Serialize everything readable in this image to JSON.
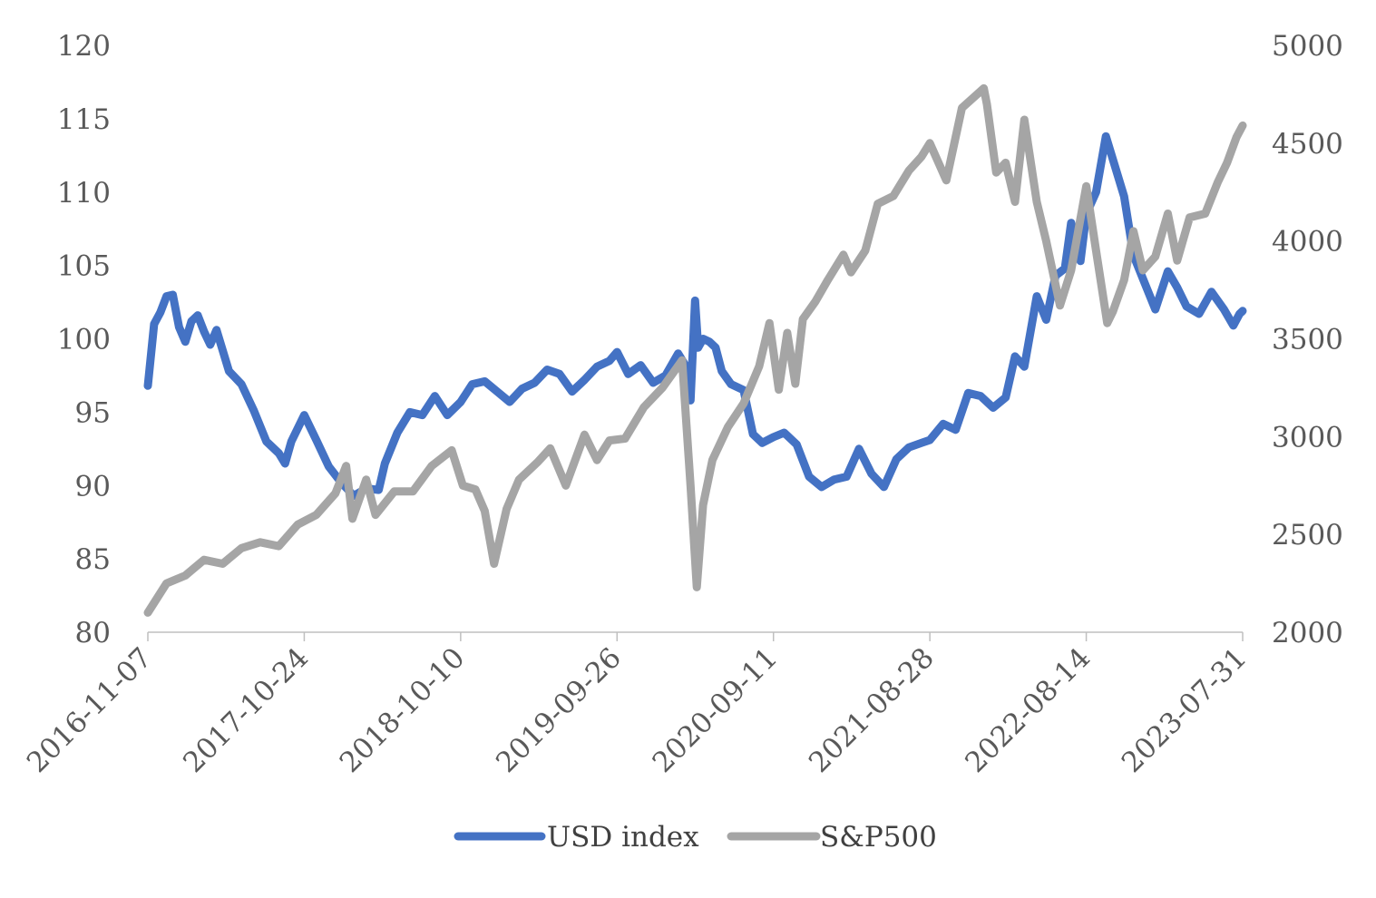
{
  "chart_data": {
    "type": "line",
    "title": "",
    "x_tick_labels": [
      "2016-11-07",
      "2017-10-24",
      "2018-10-10",
      "2019-09-26",
      "2020-09-11",
      "2021-08-28",
      "2022-08-14",
      "2023-07-31"
    ],
    "x_range": [
      "2016-11-07",
      "2023-07-31"
    ],
    "left_axis": {
      "ylim": [
        80,
        120
      ],
      "ticks": [
        "80",
        "85",
        "90",
        "95",
        "100",
        "105",
        "110",
        "115",
        "120"
      ]
    },
    "right_axis": {
      "ylim": [
        2000,
        5000
      ],
      "ticks": [
        "2000",
        "2500",
        "3000",
        "3500",
        "4000",
        "4500",
        "5000"
      ]
    },
    "grid": false,
    "legend_position": "bottom",
    "series": [
      {
        "name": "USD index",
        "axis": "left",
        "color": "#4472C4",
        "x": [
          "2016-11-07",
          "2016-11-21",
          "2016-12-05",
          "2016-12-19",
          "2017-01-02",
          "2017-01-16",
          "2017-01-30",
          "2017-02-13",
          "2017-02-27",
          "2017-03-13",
          "2017-03-27",
          "2017-04-10",
          "2017-05-08",
          "2017-06-05",
          "2017-07-03",
          "2017-07-31",
          "2017-08-28",
          "2017-09-11",
          "2017-09-25",
          "2017-10-24",
          "2017-11-20",
          "2017-12-18",
          "2018-01-15",
          "2018-02-12",
          "2018-03-12",
          "2018-04-09",
          "2018-04-23",
          "2018-05-21",
          "2018-06-18",
          "2018-07-16",
          "2018-08-13",
          "2018-09-10",
          "2018-10-10",
          "2018-11-05",
          "2018-12-03",
          "2018-12-31",
          "2019-01-28",
          "2019-02-25",
          "2019-03-25",
          "2019-04-22",
          "2019-05-20",
          "2019-06-17",
          "2019-07-15",
          "2019-08-12",
          "2019-09-09",
          "2019-09-26",
          "2019-10-21",
          "2019-11-18",
          "2019-12-16",
          "2020-01-13",
          "2020-02-10",
          "2020-02-24",
          "2020-03-09",
          "2020-03-19",
          "2020-03-26",
          "2020-04-06",
          "2020-04-20",
          "2020-05-04",
          "2020-05-18",
          "2020-06-08",
          "2020-07-06",
          "2020-07-27",
          "2020-08-17",
          "2020-09-11",
          "2020-10-05",
          "2020-11-02",
          "2020-11-30",
          "2020-12-28",
          "2021-01-25",
          "2021-02-22",
          "2021-03-22",
          "2021-04-19",
          "2021-05-17",
          "2021-06-14",
          "2021-07-12",
          "2021-08-09",
          "2021-08-28",
          "2021-09-27",
          "2021-10-25",
          "2021-11-22",
          "2021-12-20",
          "2022-01-17",
          "2022-02-14",
          "2022-03-07",
          "2022-03-28",
          "2022-04-25",
          "2022-05-16",
          "2022-06-06",
          "2022-06-27",
          "2022-07-11",
          "2022-08-01",
          "2022-08-14",
          "2022-09-05",
          "2022-09-27",
          "2022-10-17",
          "2022-11-07",
          "2022-11-28",
          "2022-12-19",
          "2023-01-16",
          "2023-02-13",
          "2023-03-06",
          "2023-03-27",
          "2023-04-24",
          "2023-05-22",
          "2023-06-19",
          "2023-07-10",
          "2023-07-24",
          "2023-07-31"
        ],
        "values": [
          96.8,
          101.0,
          101.8,
          102.9,
          103.0,
          100.8,
          99.8,
          101.2,
          101.6,
          100.5,
          99.6,
          100.6,
          97.8,
          96.9,
          95.1,
          93.0,
          92.2,
          91.5,
          93.0,
          94.8,
          93.1,
          91.3,
          90.2,
          89.3,
          89.8,
          89.7,
          91.5,
          93.6,
          95.0,
          94.8,
          96.1,
          94.8,
          95.7,
          96.9,
          97.1,
          96.4,
          95.7,
          96.6,
          97.0,
          97.9,
          97.6,
          96.4,
          97.2,
          98.1,
          98.5,
          99.1,
          97.6,
          98.2,
          97.0,
          97.5,
          99.0,
          98.3,
          95.8,
          102.6,
          99.4,
          100.0,
          99.8,
          99.4,
          97.8,
          96.9,
          96.5,
          93.5,
          92.9,
          93.3,
          93.6,
          92.8,
          90.6,
          89.9,
          90.4,
          90.6,
          92.5,
          90.8,
          89.9,
          91.8,
          92.6,
          92.9,
          93.1,
          94.2,
          93.8,
          96.3,
          96.1,
          95.3,
          96.0,
          98.8,
          98.1,
          102.9,
          101.3,
          104.3,
          104.8,
          107.9,
          105.3,
          108.5,
          110.0,
          113.8,
          111.8,
          109.7,
          105.7,
          104.1,
          102.0,
          104.6,
          103.5,
          102.2,
          101.7,
          103.2,
          102.0,
          100.9,
          101.7,
          101.9
        ]
      },
      {
        "name": "S&P500",
        "axis": "right",
        "color": "#A5A5A5",
        "x": [
          "2016-11-07",
          "2016-12-19",
          "2017-01-30",
          "2017-03-13",
          "2017-04-24",
          "2017-06-05",
          "2017-07-17",
          "2017-08-28",
          "2017-10-09",
          "2017-11-20",
          "2018-01-02",
          "2018-01-26",
          "2018-02-09",
          "2018-03-12",
          "2018-04-02",
          "2018-05-14",
          "2018-06-25",
          "2018-08-06",
          "2018-09-20",
          "2018-10-15",
          "2018-11-12",
          "2018-12-03",
          "2018-12-24",
          "2019-01-21",
          "2019-02-18",
          "2019-04-01",
          "2019-04-29",
          "2019-06-03",
          "2019-07-15",
          "2019-08-12",
          "2019-09-09",
          "2019-10-14",
          "2019-11-25",
          "2020-01-06",
          "2020-02-19",
          "2020-03-09",
          "2020-03-23",
          "2020-04-06",
          "2020-04-27",
          "2020-06-01",
          "2020-07-06",
          "2020-08-10",
          "2020-09-02",
          "2020-09-23",
          "2020-10-12",
          "2020-10-30",
          "2020-11-16",
          "2020-12-14",
          "2021-01-11",
          "2021-02-15",
          "2021-03-04",
          "2021-04-05",
          "2021-05-03",
          "2021-06-07",
          "2021-07-12",
          "2021-08-09",
          "2021-08-28",
          "2021-10-04",
          "2021-11-08",
          "2021-12-27",
          "2022-01-03",
          "2022-01-24",
          "2022-02-14",
          "2022-03-07",
          "2022-03-28",
          "2022-04-25",
          "2022-05-16",
          "2022-06-16",
          "2022-07-11",
          "2022-08-14",
          "2022-09-05",
          "2022-09-30",
          "2022-10-13",
          "2022-11-07",
          "2022-11-28",
          "2022-12-19",
          "2023-01-16",
          "2023-02-13",
          "2023-03-06",
          "2023-04-03",
          "2023-05-08",
          "2023-06-05",
          "2023-06-26",
          "2023-07-17",
          "2023-07-31"
        ],
        "values": [
          2100,
          2250,
          2290,
          2370,
          2350,
          2430,
          2460,
          2440,
          2550,
          2600,
          2710,
          2850,
          2580,
          2780,
          2600,
          2720,
          2720,
          2850,
          2930,
          2750,
          2730,
          2620,
          2350,
          2630,
          2780,
          2870,
          2940,
          2750,
          3010,
          2880,
          2980,
          2990,
          3150,
          3250,
          3390,
          2750,
          2230,
          2650,
          2880,
          3050,
          3170,
          3360,
          3580,
          3240,
          3530,
          3270,
          3600,
          3690,
          3800,
          3930,
          3840,
          3950,
          4190,
          4230,
          4360,
          4430,
          4500,
          4310,
          4680,
          4780,
          4700,
          4350,
          4400,
          4200,
          4620,
          4200,
          4000,
          3670,
          3850,
          4280,
          3950,
          3580,
          3640,
          3800,
          4050,
          3850,
          3920,
          4140,
          3900,
          4120,
          4140,
          4300,
          4400,
          4530,
          4590
        ]
      }
    ]
  }
}
